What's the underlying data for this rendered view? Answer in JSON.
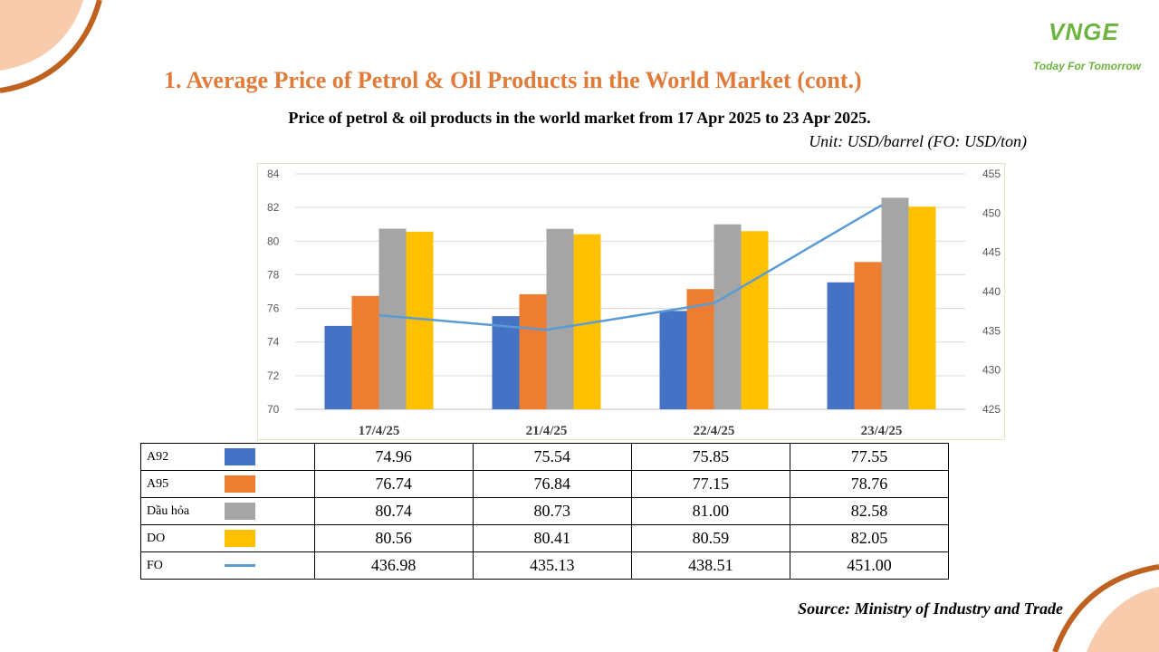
{
  "slide": {
    "heading": "1. Average Price of Petrol & Oil Products in the World Market (cont.)",
    "subtitle": "Price of petrol & oil products in the world market from 17 Apr 2025 to 23 Apr 2025.",
    "unit": "Unit:  USD/barrel (FO: USD/ton)",
    "source": "Source: Ministry of Industry and Trade",
    "accent_color": "#e07b39",
    "decoration_color": "#c0621f"
  },
  "logo": {
    "mark": "VNGE",
    "tagline": "Today For Tomorrow",
    "color": "#6db33f"
  },
  "chart_data": {
    "type": "bar",
    "categories": [
      "17/4/25",
      "21/4/25",
      "22/4/25",
      "23/4/25"
    ],
    "series": [
      {
        "name": "A92",
        "type": "bar",
        "axis": "left",
        "color": "#4472c4",
        "values": [
          74.96,
          75.54,
          75.85,
          77.55
        ]
      },
      {
        "name": "A95",
        "type": "bar",
        "axis": "left",
        "color": "#ed7d31",
        "values": [
          76.74,
          76.84,
          77.15,
          78.76
        ]
      },
      {
        "name": "Dầu hỏa",
        "type": "bar",
        "axis": "left",
        "color": "#a5a5a5",
        "values": [
          80.74,
          80.73,
          81.0,
          82.58
        ]
      },
      {
        "name": "DO",
        "type": "bar",
        "axis": "left",
        "color": "#ffc000",
        "values": [
          80.56,
          80.41,
          80.59,
          82.05
        ]
      },
      {
        "name": "FO",
        "type": "line",
        "axis": "right",
        "color": "#5b9bd5",
        "values": [
          436.98,
          435.13,
          438.51,
          451.0
        ]
      }
    ],
    "y_left": {
      "min": 70,
      "max": 84,
      "step": 2,
      "ticks": [
        "70",
        "72",
        "74",
        "76",
        "78",
        "80",
        "82",
        "84"
      ]
    },
    "y_right": {
      "min": 425,
      "max": 455,
      "step": 5,
      "ticks": [
        "425",
        "430",
        "435",
        "440",
        "445",
        "450",
        "455"
      ]
    },
    "grid": true,
    "legend": "data table below chart"
  },
  "table": {
    "rows": [
      {
        "label": "A92",
        "swatch": "bar",
        "color": "#4472c4",
        "values": [
          "74.96",
          "75.54",
          "75.85",
          "77.55"
        ]
      },
      {
        "label": "A95",
        "swatch": "bar",
        "color": "#ed7d31",
        "values": [
          "76.74",
          "76.84",
          "77.15",
          "78.76"
        ]
      },
      {
        "label": "Dầu hỏa",
        "swatch": "bar",
        "color": "#a5a5a5",
        "values": [
          "80.74",
          "80.73",
          "81.00",
          "82.58"
        ]
      },
      {
        "label": "DO",
        "swatch": "bar",
        "color": "#ffc000",
        "values": [
          "80.56",
          "80.41",
          "80.59",
          "82.05"
        ]
      },
      {
        "label": "FO",
        "swatch": "line",
        "color": "#5b9bd5",
        "values": [
          "436.98",
          "435.13",
          "438.51",
          "451.00"
        ]
      }
    ]
  }
}
